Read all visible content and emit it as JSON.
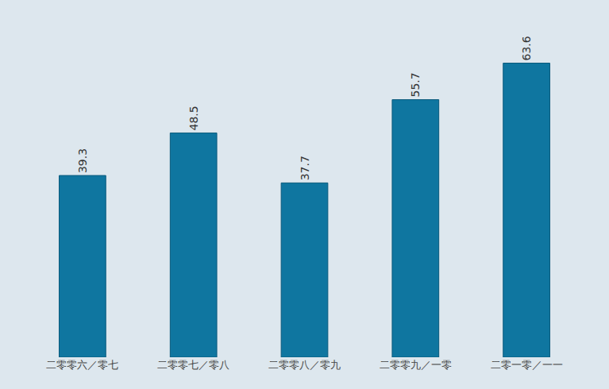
{
  "chart_data": {
    "type": "bar",
    "categories": [
      "二零零六／零七",
      "二零零七／零八",
      "二零零八／零九",
      "二零零九／一零",
      "二零一零／一一"
    ],
    "values": [
      39.3,
      48.5,
      37.7,
      55.7,
      63.6
    ],
    "color": "#0f76a0",
    "data_labels": true,
    "grid": false,
    "tick_labels": "x"
  }
}
